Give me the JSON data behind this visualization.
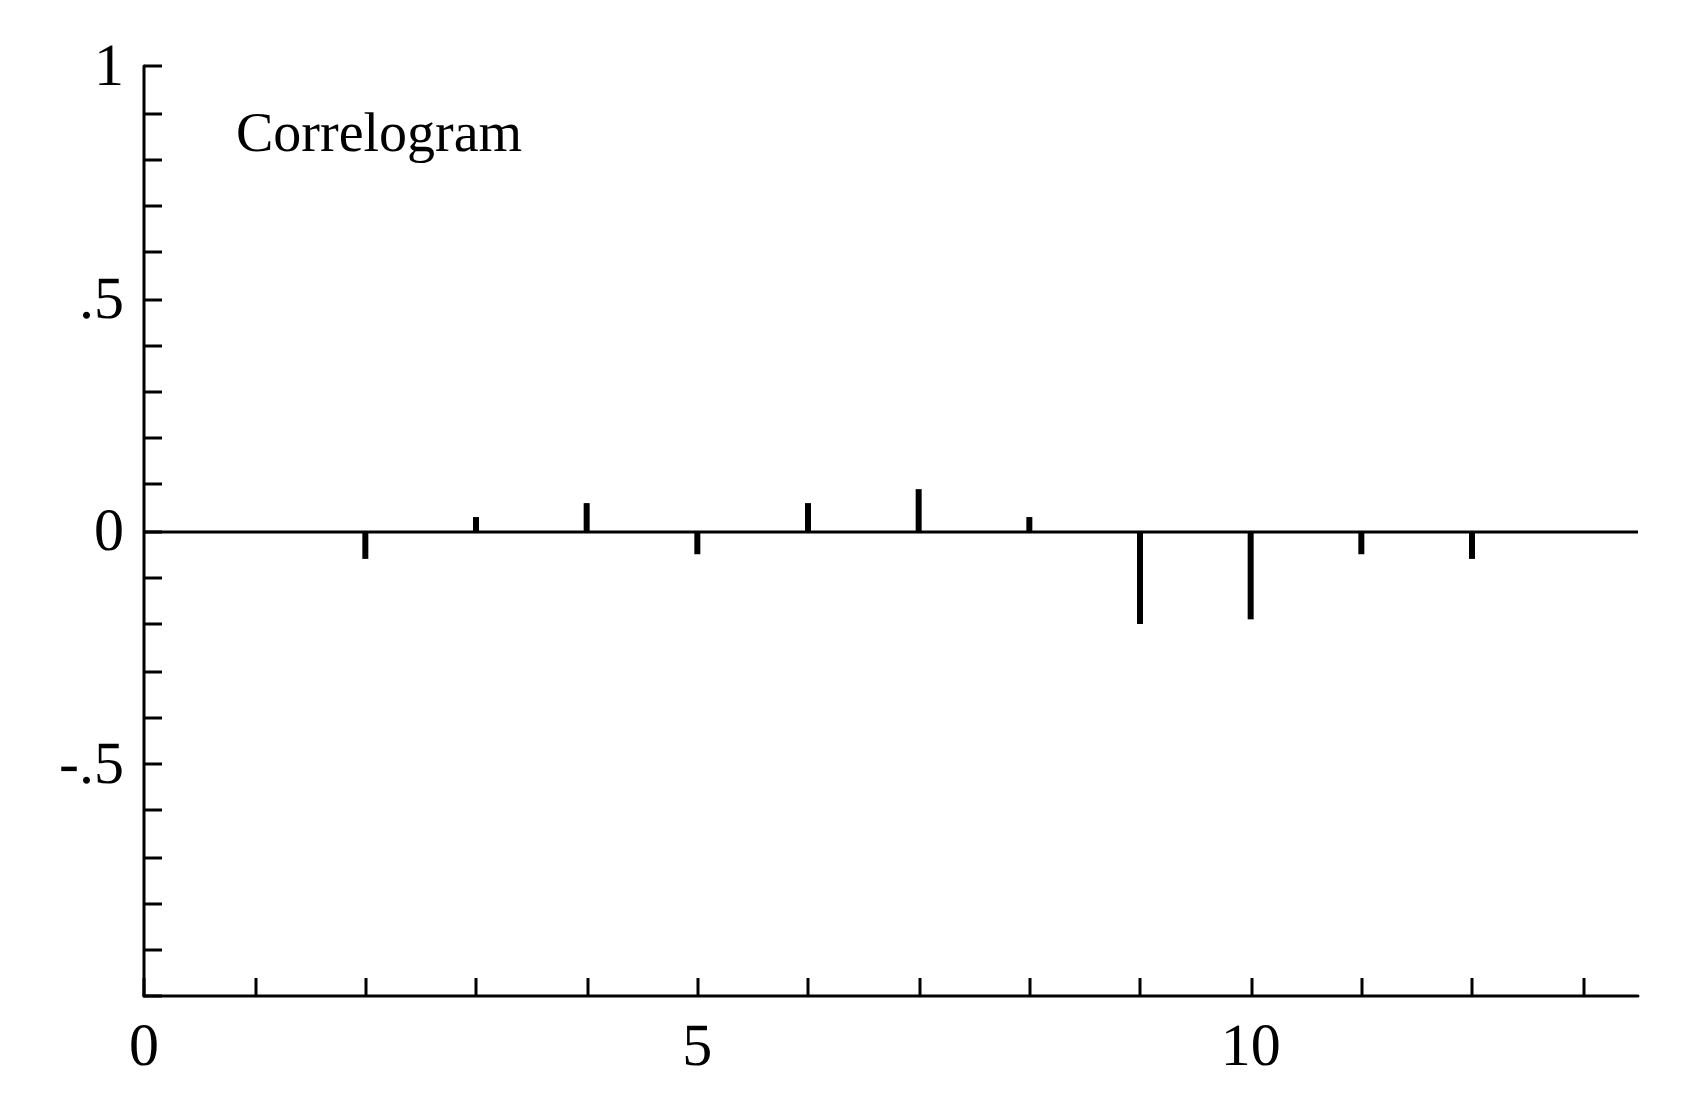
{
  "chart_data": {
    "type": "bar",
    "title": "Correlogram",
    "x": [
      2,
      3,
      4,
      5,
      6,
      7,
      8,
      9,
      10,
      11,
      12
    ],
    "series": [
      {
        "color": "#000000",
        "values": [
          -0.06,
          0.03,
          0.06,
          -0.05,
          0.06,
          0.09,
          0.03,
          -0.2,
          -0.19,
          -0.05,
          -0.06
        ]
      }
    ],
    "xlim": [
      0,
      13.5
    ],
    "xticks": [
      0,
      {
        "value": 1,
        "label": null
      },
      {
        "value": 2,
        "label": null
      },
      {
        "value": 3,
        "label": null
      },
      {
        "value": 4,
        "label": null
      },
      5,
      {
        "value": 6,
        "label": null
      },
      {
        "value": 7,
        "label": null
      },
      {
        "value": 8,
        "label": null
      },
      {
        "value": 9,
        "label": null
      },
      10,
      {
        "value": 11,
        "label": null
      },
      {
        "value": 12,
        "label": null
      },
      {
        "value": 13,
        "label": null
      }
    ],
    "ylim": [
      -1,
      1
    ],
    "yticks": [
      {
        "value": -1,
        "label": null
      },
      {
        "value": -0.9,
        "label": null
      },
      {
        "value": -0.8,
        "label": null
      },
      {
        "value": -0.7,
        "label": null
      },
      {
        "value": -0.6,
        "label": null
      },
      {
        "value": -0.5,
        "label": "-.5"
      },
      {
        "value": -0.4,
        "label": null
      },
      {
        "value": -0.3,
        "label": null
      },
      {
        "value": -0.2,
        "label": null
      },
      {
        "value": -0.1,
        "label": null
      },
      0,
      {
        "value": 0.1,
        "label": null
      },
      {
        "value": 0.2,
        "label": null
      },
      {
        "value": 0.3,
        "label": null
      },
      {
        "value": 0.4,
        "label": null
      },
      {
        "value": 0.5,
        "label": ".5"
      },
      {
        "value": 0.6,
        "label": null
      },
      {
        "value": 0.7,
        "label": null
      },
      {
        "value": 0.8,
        "label": null
      },
      {
        "value": 0.9,
        "label": null
      },
      1
    ],
    "ref_lines": [
      {
        "axis": "y",
        "value": 0,
        "color": "#000000"
      }
    ],
    "grid": false
  }
}
